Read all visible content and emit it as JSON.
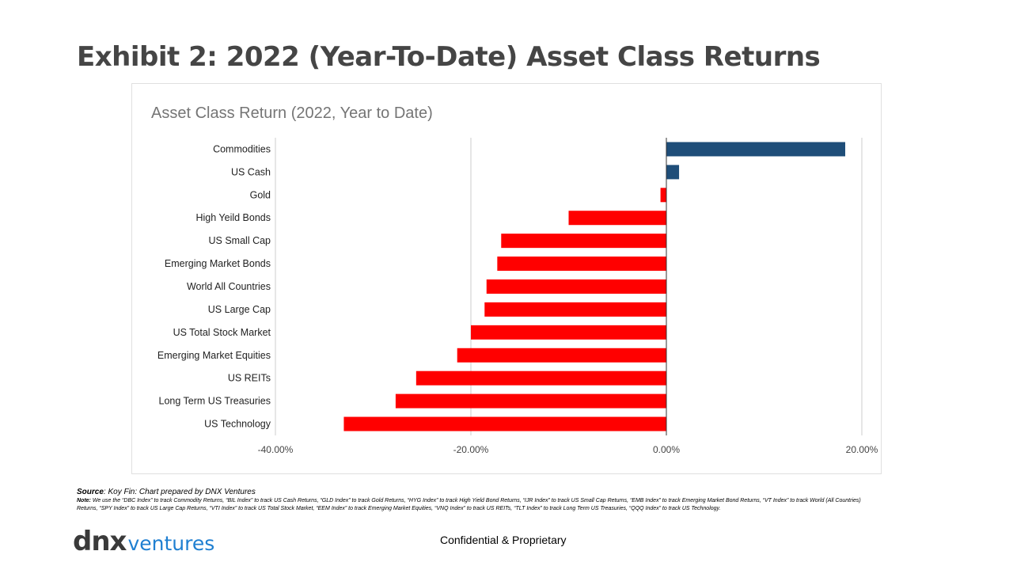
{
  "slide": {
    "title": "Exhibit 2: 2022 (Year-To-Date) Asset Class Returns"
  },
  "footer": {
    "source_label": "Source",
    "source_text": ": Koy Fin: Chart prepared by DNX Ventures",
    "note_label": "Note:",
    "note_text": " We use the “DBC Index” to track Commodity Returns, “BIL Index” to track US Cash Returns, “GLD Index” to track Gold Returns, “HYG Index” to track High Yield Bond Returns, “IJR Index” to track US Small  Cap Returns, “EMB Index” to track Emerging Market Bond Returns, “VT Index” to track World (All Countries) Returns, “SPY Index” to track US Large Cap Returns, “VTI Index” to track US Total Stock Market, “EEM Index” to track Emerging Market Equities, “VNQ Index” to track US REITs, “TLT Index” to track Long Term US Treasuries, “QQQ Index” to track US Technology.",
    "confidential": "Confidential & Proprietary"
  },
  "logo": {
    "dnx": "dnx",
    "ventures": "ventures",
    "dnx_color": "#3a3a3a",
    "ventures_color": "#1f7fd1"
  },
  "colors": {
    "positive": "#1f4e79",
    "negative": "#ff0000",
    "grid": "#cccccc",
    "zero_line": "#333333"
  },
  "chart_data": {
    "type": "bar",
    "orientation": "horizontal",
    "title": "Asset Class Return (2022, Year to Date)",
    "xlabel": "",
    "ylabel": "",
    "xlim": [
      -0.4,
      0.2
    ],
    "xticks": [
      -0.4,
      -0.2,
      0.0,
      0.2
    ],
    "xtick_labels": [
      "-40.00%",
      "-20.00%",
      "0.00%",
      "20.00%"
    ],
    "grid": "vertical",
    "legend": "none",
    "categories": [
      "Commodities",
      "US Cash",
      "Gold",
      "High Yeild Bonds",
      "US Small Cap",
      "Emerging Market Bonds",
      "World All Countries",
      "US Large Cap",
      "US Total Stock Market",
      "Emerging Market Equities",
      "US REITs",
      "Long Term US Treasuries",
      "US Technology"
    ],
    "values": [
      0.183,
      0.013,
      -0.006,
      -0.1,
      -0.169,
      -0.173,
      -0.184,
      -0.186,
      -0.2,
      -0.214,
      -0.256,
      -0.277,
      -0.33
    ]
  }
}
